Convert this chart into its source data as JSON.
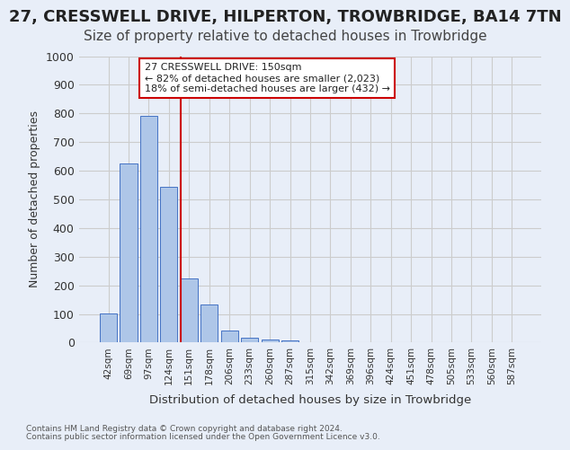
{
  "title": "27, CRESSWELL DRIVE, HILPERTON, TROWBRIDGE, BA14 7TN",
  "subtitle": "Size of property relative to detached houses in Trowbridge",
  "xlabel": "Distribution of detached houses by size in Trowbridge",
  "ylabel": "Number of detached properties",
  "footnote1": "Contains HM Land Registry data © Crown copyright and database right 2024.",
  "footnote2": "Contains public sector information licensed under the Open Government Licence v3.0.",
  "bar_labels": [
    "42sqm",
    "69sqm",
    "97sqm",
    "124sqm",
    "151sqm",
    "178sqm",
    "206sqm",
    "233sqm",
    "260sqm",
    "287sqm",
    "315sqm",
    "342sqm",
    "369sqm",
    "396sqm",
    "424sqm",
    "451sqm",
    "478sqm",
    "505sqm",
    "533sqm",
    "560sqm",
    "587sqm"
  ],
  "bar_values": [
    103,
    625,
    793,
    543,
    225,
    133,
    43,
    18,
    10,
    8,
    0,
    0,
    0,
    0,
    0,
    0,
    0,
    0,
    0,
    0,
    0
  ],
  "bar_color": "#aec6e8",
  "bar_edge_color": "#4472c4",
  "annotation_line1": "27 CRESSWELL DRIVE: 150sqm",
  "annotation_line2": "← 82% of detached houses are smaller (2,023)",
  "annotation_line3": "18% of semi-detached houses are larger (432) →",
  "annotation_box_color": "#ffffff",
  "annotation_box_edge": "#cc0000",
  "vline_color": "#cc0000",
  "vline_x": 3.575,
  "ylim": [
    0,
    1000
  ],
  "yticks": [
    0,
    100,
    200,
    300,
    400,
    500,
    600,
    700,
    800,
    900,
    1000
  ],
  "grid_color": "#cccccc",
  "bg_color": "#e8eef8",
  "title_fontsize": 13,
  "subtitle_fontsize": 11
}
